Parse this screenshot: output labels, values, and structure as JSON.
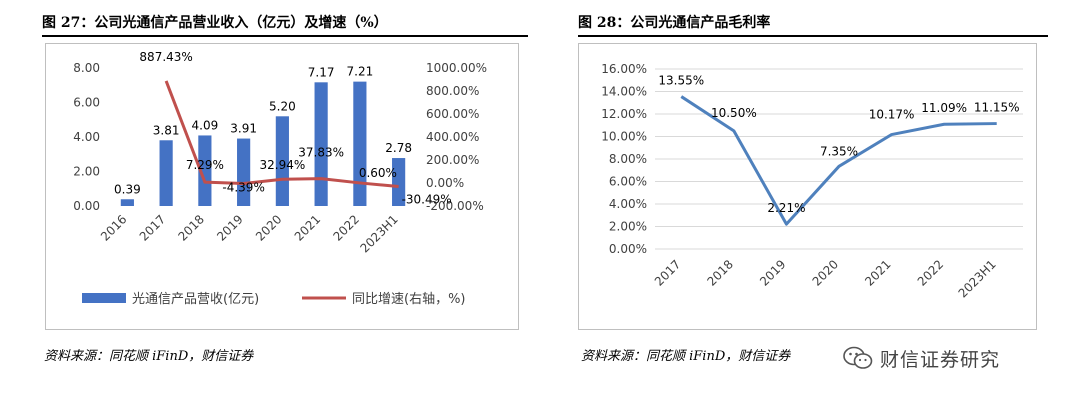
{
  "left": {
    "title": "图 27：公司光通信产品营业收入（亿元）及增速（%）",
    "source": "资料来源：同花顺 iFinD，财信证券"
  },
  "right": {
    "title": "图 28：公司光通信产品毛利率",
    "source": "资料来源：同花顺 iFinD，财信证券"
  },
  "watermark": {
    "text": "财信证券研究",
    "icon": "wechat-icon"
  },
  "colors": {
    "bar": "#4472c4",
    "growth_line": "#c0504d",
    "margin_line": "#4f81bd",
    "grid": "#d9d9d9"
  },
  "chart_data": [
    {
      "type": "bar",
      "categories": [
        "2016",
        "2017",
        "2018",
        "2019",
        "2020",
        "2021",
        "2022",
        "2023H1"
      ],
      "series": [
        {
          "name": "光通信产品营收(亿元)",
          "type": "bar",
          "axis": "left",
          "values": [
            0.39,
            3.81,
            4.09,
            3.91,
            5.2,
            7.17,
            7.21,
            2.78
          ],
          "labels": [
            "0.39",
            "3.81",
            "4.09",
            "3.91",
            "5.20",
            "7.17",
            "7.21",
            "2.78"
          ]
        },
        {
          "name": "同比增速(右轴，%)",
          "type": "line",
          "axis": "right",
          "values": [
            null,
            887.43,
            7.29,
            -4.39,
            32.94,
            37.83,
            0.6,
            -30.49
          ],
          "labels": [
            "",
            "887.43%",
            "7.29%",
            "-4.39%",
            "32.94%",
            "37.83%",
            "0.60%",
            "-30.49%"
          ]
        }
      ],
      "ylim": [
        0,
        8
      ],
      "yticks": [
        "0.00",
        "2.00",
        "4.00",
        "6.00",
        "8.00"
      ],
      "y2lim": [
        -200,
        1000
      ],
      "y2ticks": [
        "-200.00%",
        "0.00%",
        "200.00%",
        "400.00%",
        "600.00%",
        "800.00%",
        "1000.00%"
      ],
      "legend_position": "bottom",
      "grid": false
    },
    {
      "type": "line",
      "categories": [
        "2017",
        "2018",
        "2019",
        "2020",
        "2021",
        "2022",
        "2023H1"
      ],
      "series": [
        {
          "values": [
            13.55,
            10.5,
            2.21,
            7.35,
            10.17,
            11.09,
            11.15
          ],
          "labels": [
            "13.55%",
            "10.50%",
            "2.21%",
            "7.35%",
            "10.17%",
            "11.09%",
            "11.15%"
          ]
        }
      ],
      "ylim": [
        0,
        16
      ],
      "yticks": [
        "0.00%",
        "2.00%",
        "4.00%",
        "6.00%",
        "8.00%",
        "10.00%",
        "12.00%",
        "14.00%",
        "16.00%"
      ],
      "grid": true
    }
  ]
}
